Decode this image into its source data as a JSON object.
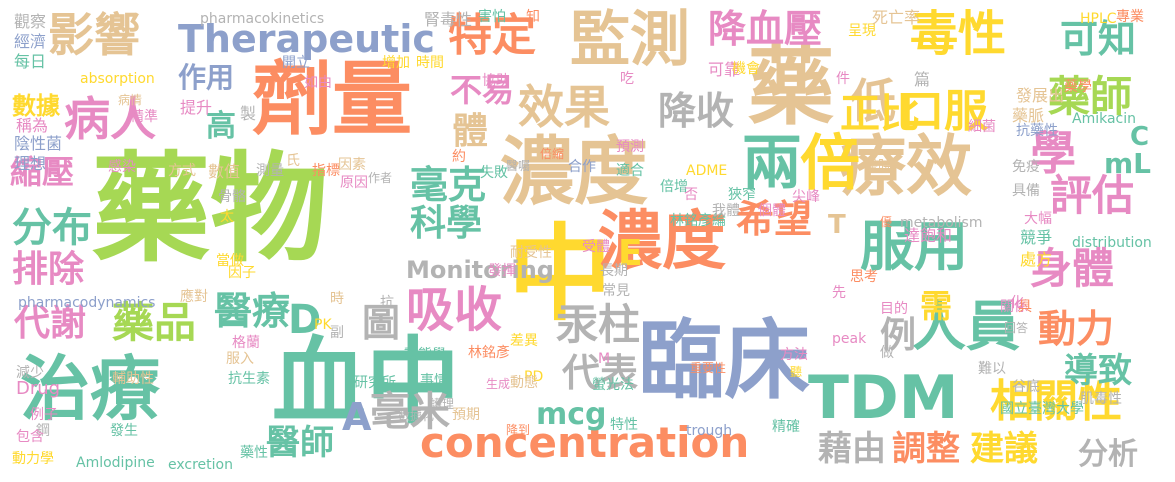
{
  "palette": {
    "pink": "#e78ac3",
    "green": "#a6d854",
    "yellow": "#ffd92f",
    "tan": "#e5c494",
    "teal": "#66c2a5",
    "orange": "#fc8d62",
    "blue": "#8da0cb",
    "gray": "#b3b3b3"
  },
  "words": [
    {
      "text": "藥物"
    },
    {
      "text": "濃度"
    },
    {
      "text": "中"
    },
    {
      "text": "血中"
    },
    {
      "text": "臨床"
    },
    {
      "text": "劑量"
    },
    {
      "text": "藥"
    },
    {
      "text": "療效"
    },
    {
      "text": "監測"
    },
    {
      "text": "治療"
    },
    {
      "text": "濃度"
    },
    {
      "text": "TDM"
    },
    {
      "text": "concentration"
    },
    {
      "text": "影響"
    },
    {
      "text": "Therapeutic"
    },
    {
      "text": "毒性"
    },
    {
      "text": "病人"
    },
    {
      "text": "兩"
    },
    {
      "text": "倍"
    },
    {
      "text": "效果"
    },
    {
      "text": "低"
    },
    {
      "text": "服用"
    },
    {
      "text": "人員"
    },
    {
      "text": "身體"
    },
    {
      "text": "相關性"
    },
    {
      "text": "特定"
    },
    {
      "text": "降血壓"
    },
    {
      "text": "口服"
    },
    {
      "text": "學"
    },
    {
      "text": "評估"
    },
    {
      "text": "吸收"
    },
    {
      "text": "藥師"
    },
    {
      "text": "可知"
    },
    {
      "text": "降收"
    },
    {
      "text": "正比"
    },
    {
      "text": "分布"
    },
    {
      "text": "排除"
    },
    {
      "text": "代謝"
    },
    {
      "text": "藥品"
    },
    {
      "text": "醫療"
    },
    {
      "text": "毫克"
    },
    {
      "text": "科學"
    },
    {
      "text": "希望"
    },
    {
      "text": "代表"
    },
    {
      "text": "毫米"
    },
    {
      "text": "醫師"
    },
    {
      "text": "藉由"
    },
    {
      "text": "調整"
    },
    {
      "text": "建議"
    },
    {
      "text": "分析"
    },
    {
      "text": "動力"
    },
    {
      "text": "導致"
    },
    {
      "text": "縮壓"
    },
    {
      "text": "數據"
    },
    {
      "text": "作用"
    },
    {
      "text": "高"
    },
    {
      "text": "不易"
    },
    {
      "text": "體"
    },
    {
      "text": "圖"
    },
    {
      "text": "汞柱"
    },
    {
      "text": "例"
    },
    {
      "text": "需"
    },
    {
      "text": "mcg"
    },
    {
      "text": "mL"
    },
    {
      "text": "Monitoring"
    },
    {
      "text": "E"
    },
    {
      "text": "D"
    },
    {
      "text": "A"
    },
    {
      "text": "C"
    },
    {
      "text": "T"
    },
    {
      "text": "pharmacokinetics"
    },
    {
      "text": "pharmacodynamics"
    },
    {
      "text": "absorption"
    },
    {
      "text": "distribution"
    },
    {
      "text": "metabolism"
    },
    {
      "text": "excretion"
    },
    {
      "text": "Amlodipine"
    },
    {
      "text": "Amikacin"
    },
    {
      "text": "HPLC"
    },
    {
      "text": "Drug"
    },
    {
      "text": "ADME"
    },
    {
      "text": "PK"
    },
    {
      "text": "PD"
    },
    {
      "text": "peak"
    },
    {
      "text": "trough"
    },
    {
      "text": "M"
    },
    {
      "text": "林銘彥"
    },
    {
      "text": "林銘彥綸"
    },
    {
      "text": "國立臺灣大學"
    },
    {
      "text": "研究所"
    },
    {
      "text": "螢光法"
    },
    {
      "text": "觀察"
    },
    {
      "text": "經濟"
    },
    {
      "text": "每日"
    },
    {
      "text": "稱為"
    },
    {
      "text": "陰性菌"
    },
    {
      "text": "理想"
    },
    {
      "text": "病情"
    },
    {
      "text": "精準"
    },
    {
      "text": "提升"
    },
    {
      "text": "感染"
    },
    {
      "text": "方式"
    },
    {
      "text": "數值"
    },
    {
      "text": "測量"
    },
    {
      "text": "指標"
    },
    {
      "text": "因素"
    },
    {
      "text": "原因"
    },
    {
      "text": "作者"
    },
    {
      "text": "腎毒性"
    },
    {
      "text": "害怕"
    },
    {
      "text": "知"
    },
    {
      "text": "呈現"
    },
    {
      "text": "死亡率"
    },
    {
      "text": "專業"
    },
    {
      "text": "開立"
    },
    {
      "text": "如由"
    },
    {
      "text": "增加"
    },
    {
      "text": "時間"
    },
    {
      "text": "協助"
    },
    {
      "text": "吃"
    },
    {
      "text": "可靠"
    },
    {
      "text": "機會"
    },
    {
      "text": "件"
    },
    {
      "text": "篇"
    },
    {
      "text": "藥學"
    },
    {
      "text": "發展出"
    },
    {
      "text": "藥脈"
    },
    {
      "text": "抗藥性"
    },
    {
      "text": "細菌"
    },
    {
      "text": "醫院"
    },
    {
      "text": "免疫"
    },
    {
      "text": "具備"
    },
    {
      "text": "大幅"
    },
    {
      "text": "優"
    },
    {
      "text": "達飽和"
    },
    {
      "text": "競爭"
    },
    {
      "text": "處方"
    },
    {
      "text": "思考"
    },
    {
      "text": "目的"
    },
    {
      "text": "關係"
    },
    {
      "text": "具"
    },
    {
      "text": "化"
    },
    {
      "text": "回答"
    },
    {
      "text": "做"
    },
    {
      "text": "難以"
    },
    {
      "text": "谷底"
    },
    {
      "text": "肌毒性"
    },
    {
      "text": "方法"
    },
    {
      "text": "聽"
    },
    {
      "text": "尖峰"
    },
    {
      "text": "個體"
    },
    {
      "text": "我體"
    },
    {
      "text": "狹窄"
    },
    {
      "text": "倍增"
    },
    {
      "text": "預測"
    },
    {
      "text": "適合"
    },
    {
      "text": "合作"
    },
    {
      "text": "倍縮"
    },
    {
      "text": "醫囑"
    },
    {
      "text": "失敗"
    },
    {
      "text": "約"
    },
    {
      "text": "否"
    },
    {
      "text": "製"
    },
    {
      "text": "氏"
    },
    {
      "text": "骨骼"
    },
    {
      "text": "太"
    },
    {
      "text": "當做"
    },
    {
      "text": "因子"
    },
    {
      "text": "應對"
    },
    {
      "text": "時"
    },
    {
      "text": "抗"
    },
    {
      "text": "長期"
    },
    {
      "text": "常見"
    },
    {
      "text": "先"
    },
    {
      "text": "耐受性"
    },
    {
      "text": "受體"
    },
    {
      "text": "發揮"
    },
    {
      "text": "差異"
    },
    {
      "text": "副"
    },
    {
      "text": "動態學"
    },
    {
      "text": "格蘭"
    },
    {
      "text": "服入"
    },
    {
      "text": "抗生素"
    },
    {
      "text": "事情"
    },
    {
      "text": "生成"
    },
    {
      "text": "動態"
    },
    {
      "text": "重要性"
    },
    {
      "text": "減少"
    },
    {
      "text": "輔助性"
    },
    {
      "text": "例子"
    },
    {
      "text": "鋼"
    },
    {
      "text": "包含"
    },
    {
      "text": "發生"
    },
    {
      "text": "動力學"
    },
    {
      "text": "數據化"
    },
    {
      "text": "護理"
    },
    {
      "text": "預期"
    },
    {
      "text": "降到"
    },
    {
      "text": "特性"
    },
    {
      "text": "精確"
    },
    {
      "text": "藥性"
    }
  ]
}
